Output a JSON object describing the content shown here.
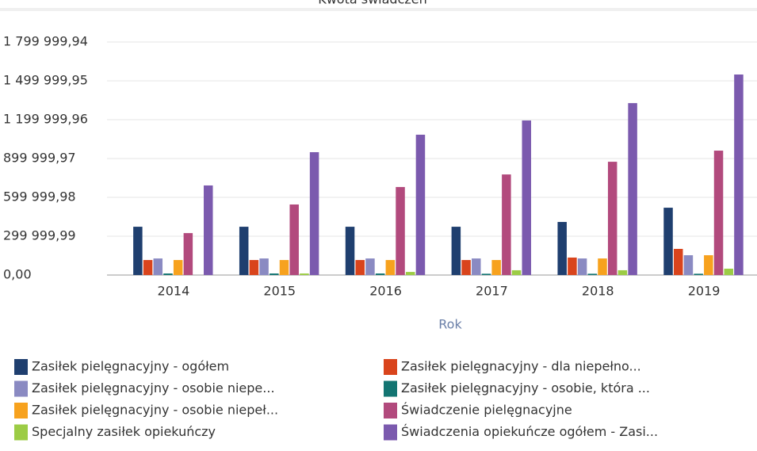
{
  "chart_data": {
    "type": "bar",
    "title": "Kwota świadczeń",
    "x_label": "Rok",
    "categories": [
      "2014",
      "2015",
      "2016",
      "2017",
      "2018",
      "2019"
    ],
    "series": [
      {
        "name": "Zasiłek pielęgnacyjny - ogółem",
        "color": "#1f3f6f",
        "values": [
          373000,
          373000,
          373000,
          373000,
          410000,
          520000
        ]
      },
      {
        "name": "Zasiłek pielęgnacyjny - dla niepełno...",
        "color": "#d9441c",
        "values": [
          116000,
          116000,
          116000,
          116000,
          135000,
          202000
        ]
      },
      {
        "name": "Zasiłek pielęgnacyjny - osobie niepe...",
        "color": "#8a8ac2",
        "values": [
          128000,
          128000,
          128000,
          128000,
          128000,
          153000
        ]
      },
      {
        "name": "Zasiłek pielęgnacyjny - osobie, która ...",
        "color": "#137572",
        "values": [
          12000,
          12000,
          12000,
          10000,
          10000,
          10000
        ]
      },
      {
        "name": "Zasiłek pielęgnacyjny -  osobie niepeł...",
        "color": "#f7a21e",
        "values": [
          116000,
          116000,
          116000,
          116000,
          128000,
          153000
        ]
      },
      {
        "name": "Świadczenie pielęgnacyjne",
        "color": "#b24a7d",
        "values": [
          324000,
          545000,
          680000,
          777000,
          875000,
          961000
        ]
      },
      {
        "name": "Specjalny zasiłek opiekuńczy",
        "color": "#9ccc45",
        "values": [
          0,
          12000,
          24000,
          37000,
          37000,
          49000
        ]
      },
      {
        "name": "Świadczenia opiekuńcze ogółem - Zasi...",
        "color": "#7b5aae",
        "values": [
          692000,
          949000,
          1084000,
          1194000,
          1328000,
          1549000
        ]
      }
    ],
    "ylim": [
      0,
      1799999.94
    ],
    "yticks": [
      {
        "value": 0,
        "label": "0,00"
      },
      {
        "value": 299999.99,
        "label": "299 999,99"
      },
      {
        "value": 599999.98,
        "label": "599 999,98"
      },
      {
        "value": 899999.97,
        "label": "899 999,97"
      },
      {
        "value": 1199999.96,
        "label": "1 199 999,96"
      },
      {
        "value": 1499999.95,
        "label": "1 499 999,95"
      },
      {
        "value": 1799999.94,
        "label": "1 799 999,94"
      }
    ],
    "grid": true
  }
}
